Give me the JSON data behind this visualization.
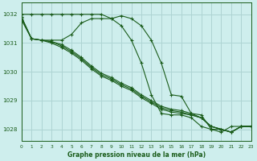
{
  "title": "Graphe pression niveau de la mer (hPa)",
  "background_color": "#ceeeed",
  "grid_color": "#aed4d3",
  "line_color": "#1a5c1a",
  "xlim": [
    0,
    23
  ],
  "ylim": [
    1027.6,
    1032.4
  ],
  "yticks": [
    1028,
    1029,
    1030,
    1031,
    1032
  ],
  "xticks": [
    0,
    1,
    2,
    3,
    4,
    5,
    6,
    7,
    8,
    9,
    10,
    11,
    12,
    13,
    14,
    15,
    16,
    17,
    18,
    19,
    20,
    21,
    22,
    23
  ],
  "series": [
    {
      "x": [
        0,
        1,
        2,
        3,
        4,
        5,
        6,
        7,
        8,
        9,
        10,
        11,
        12,
        13,
        14,
        15,
        16,
        17,
        18,
        19,
        20,
        21,
        22,
        23
      ],
      "y": [
        1032.0,
        1032.0,
        1032.0,
        1032.0,
        1032.0,
        1032.0,
        1032.0,
        1032.0,
        1032.0,
        1031.85,
        1031.95,
        1031.85,
        1031.6,
        1031.1,
        1030.3,
        1029.2,
        1029.15,
        1028.55,
        1028.5,
        1028.0,
        1028.0,
        1027.9,
        1028.1,
        1028.1
      ]
    },
    {
      "x": [
        0,
        1,
        2,
        3,
        4,
        5,
        6,
        7,
        8,
        9,
        10,
        11,
        12,
        13,
        14,
        15,
        16,
        17,
        18,
        19,
        20,
        21,
        22,
        23
      ],
      "y": [
        1031.8,
        1031.15,
        1031.1,
        1031.1,
        1031.1,
        1031.3,
        1031.7,
        1031.85,
        1031.85,
        1031.85,
        1031.6,
        1031.1,
        1030.3,
        1029.2,
        1028.55,
        1028.5,
        1028.5,
        1028.4,
        1028.1,
        1028.0,
        1027.9,
        1028.1,
        1028.1,
        1028.1
      ]
    },
    {
      "x": [
        0,
        1,
        2,
        3,
        4,
        5,
        6,
        7,
        8,
        9,
        10,
        11,
        12,
        13,
        14,
        15,
        16,
        17,
        18,
        19,
        20,
        21,
        22,
        23
      ],
      "y": [
        1031.85,
        1031.15,
        1031.1,
        1031.0,
        1030.85,
        1030.65,
        1030.4,
        1030.1,
        1029.85,
        1029.7,
        1029.5,
        1029.35,
        1029.1,
        1028.9,
        1028.7,
        1028.6,
        1028.55,
        1028.5,
        1028.4,
        1028.1,
        1028.0,
        1027.9,
        1028.1,
        1028.1
      ]
    },
    {
      "x": [
        0,
        1,
        2,
        3,
        4,
        5,
        6,
        7,
        8,
        9,
        10,
        11,
        12,
        13,
        14,
        15,
        16,
        17,
        18,
        19,
        20,
        21,
        22,
        23
      ],
      "y": [
        1031.9,
        1031.15,
        1031.1,
        1031.05,
        1030.9,
        1030.7,
        1030.45,
        1030.15,
        1029.9,
        1029.75,
        1029.55,
        1029.4,
        1029.15,
        1028.95,
        1028.75,
        1028.65,
        1028.6,
        1028.5,
        1028.4,
        1028.1,
        1028.0,
        1027.9,
        1028.1,
        1028.1
      ]
    },
    {
      "x": [
        0,
        1,
        2,
        3,
        4,
        5,
        6,
        7,
        8,
        9,
        10,
        11,
        12,
        13,
        14,
        15,
        16,
        17,
        18,
        19,
        20,
        21,
        22,
        23
      ],
      "y": [
        1031.9,
        1031.15,
        1031.1,
        1031.05,
        1030.95,
        1030.75,
        1030.5,
        1030.2,
        1029.95,
        1029.8,
        1029.6,
        1029.45,
        1029.2,
        1029.0,
        1028.8,
        1028.7,
        1028.65,
        1028.55,
        1028.4,
        1028.1,
        1028.0,
        1027.9,
        1028.1,
        1028.1
      ]
    }
  ]
}
